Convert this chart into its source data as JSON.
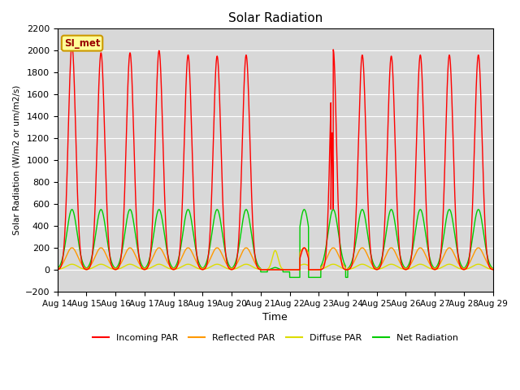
{
  "title": "Solar Radiation",
  "ylabel": "Solar Radiation (W/m2 or um/m2/s)",
  "xlabel": "Time",
  "ylim": [
    -200,
    2200
  ],
  "yticks": [
    -200,
    0,
    200,
    400,
    600,
    800,
    1000,
    1200,
    1400,
    1600,
    1800,
    2000,
    2200
  ],
  "x_labels": [
    "Aug 14",
    "Aug 15",
    "Aug 16",
    "Aug 17",
    "Aug 18",
    "Aug 19",
    "Aug 20",
    "Aug 21",
    "Aug 22",
    "Aug 23",
    "Aug 24",
    "Aug 25",
    "Aug 26",
    "Aug 27",
    "Aug 28",
    "Aug 29"
  ],
  "station_label": "SI_met",
  "colors": {
    "incoming": "#ff0000",
    "reflected": "#ff9900",
    "diffuse": "#dddd00",
    "net": "#00cc00"
  },
  "background_color": "#d8d8d8",
  "legend_labels": [
    "Incoming PAR",
    "Reflected PAR",
    "Diffuse PAR",
    "Net Radiation"
  ],
  "n_days": 15
}
